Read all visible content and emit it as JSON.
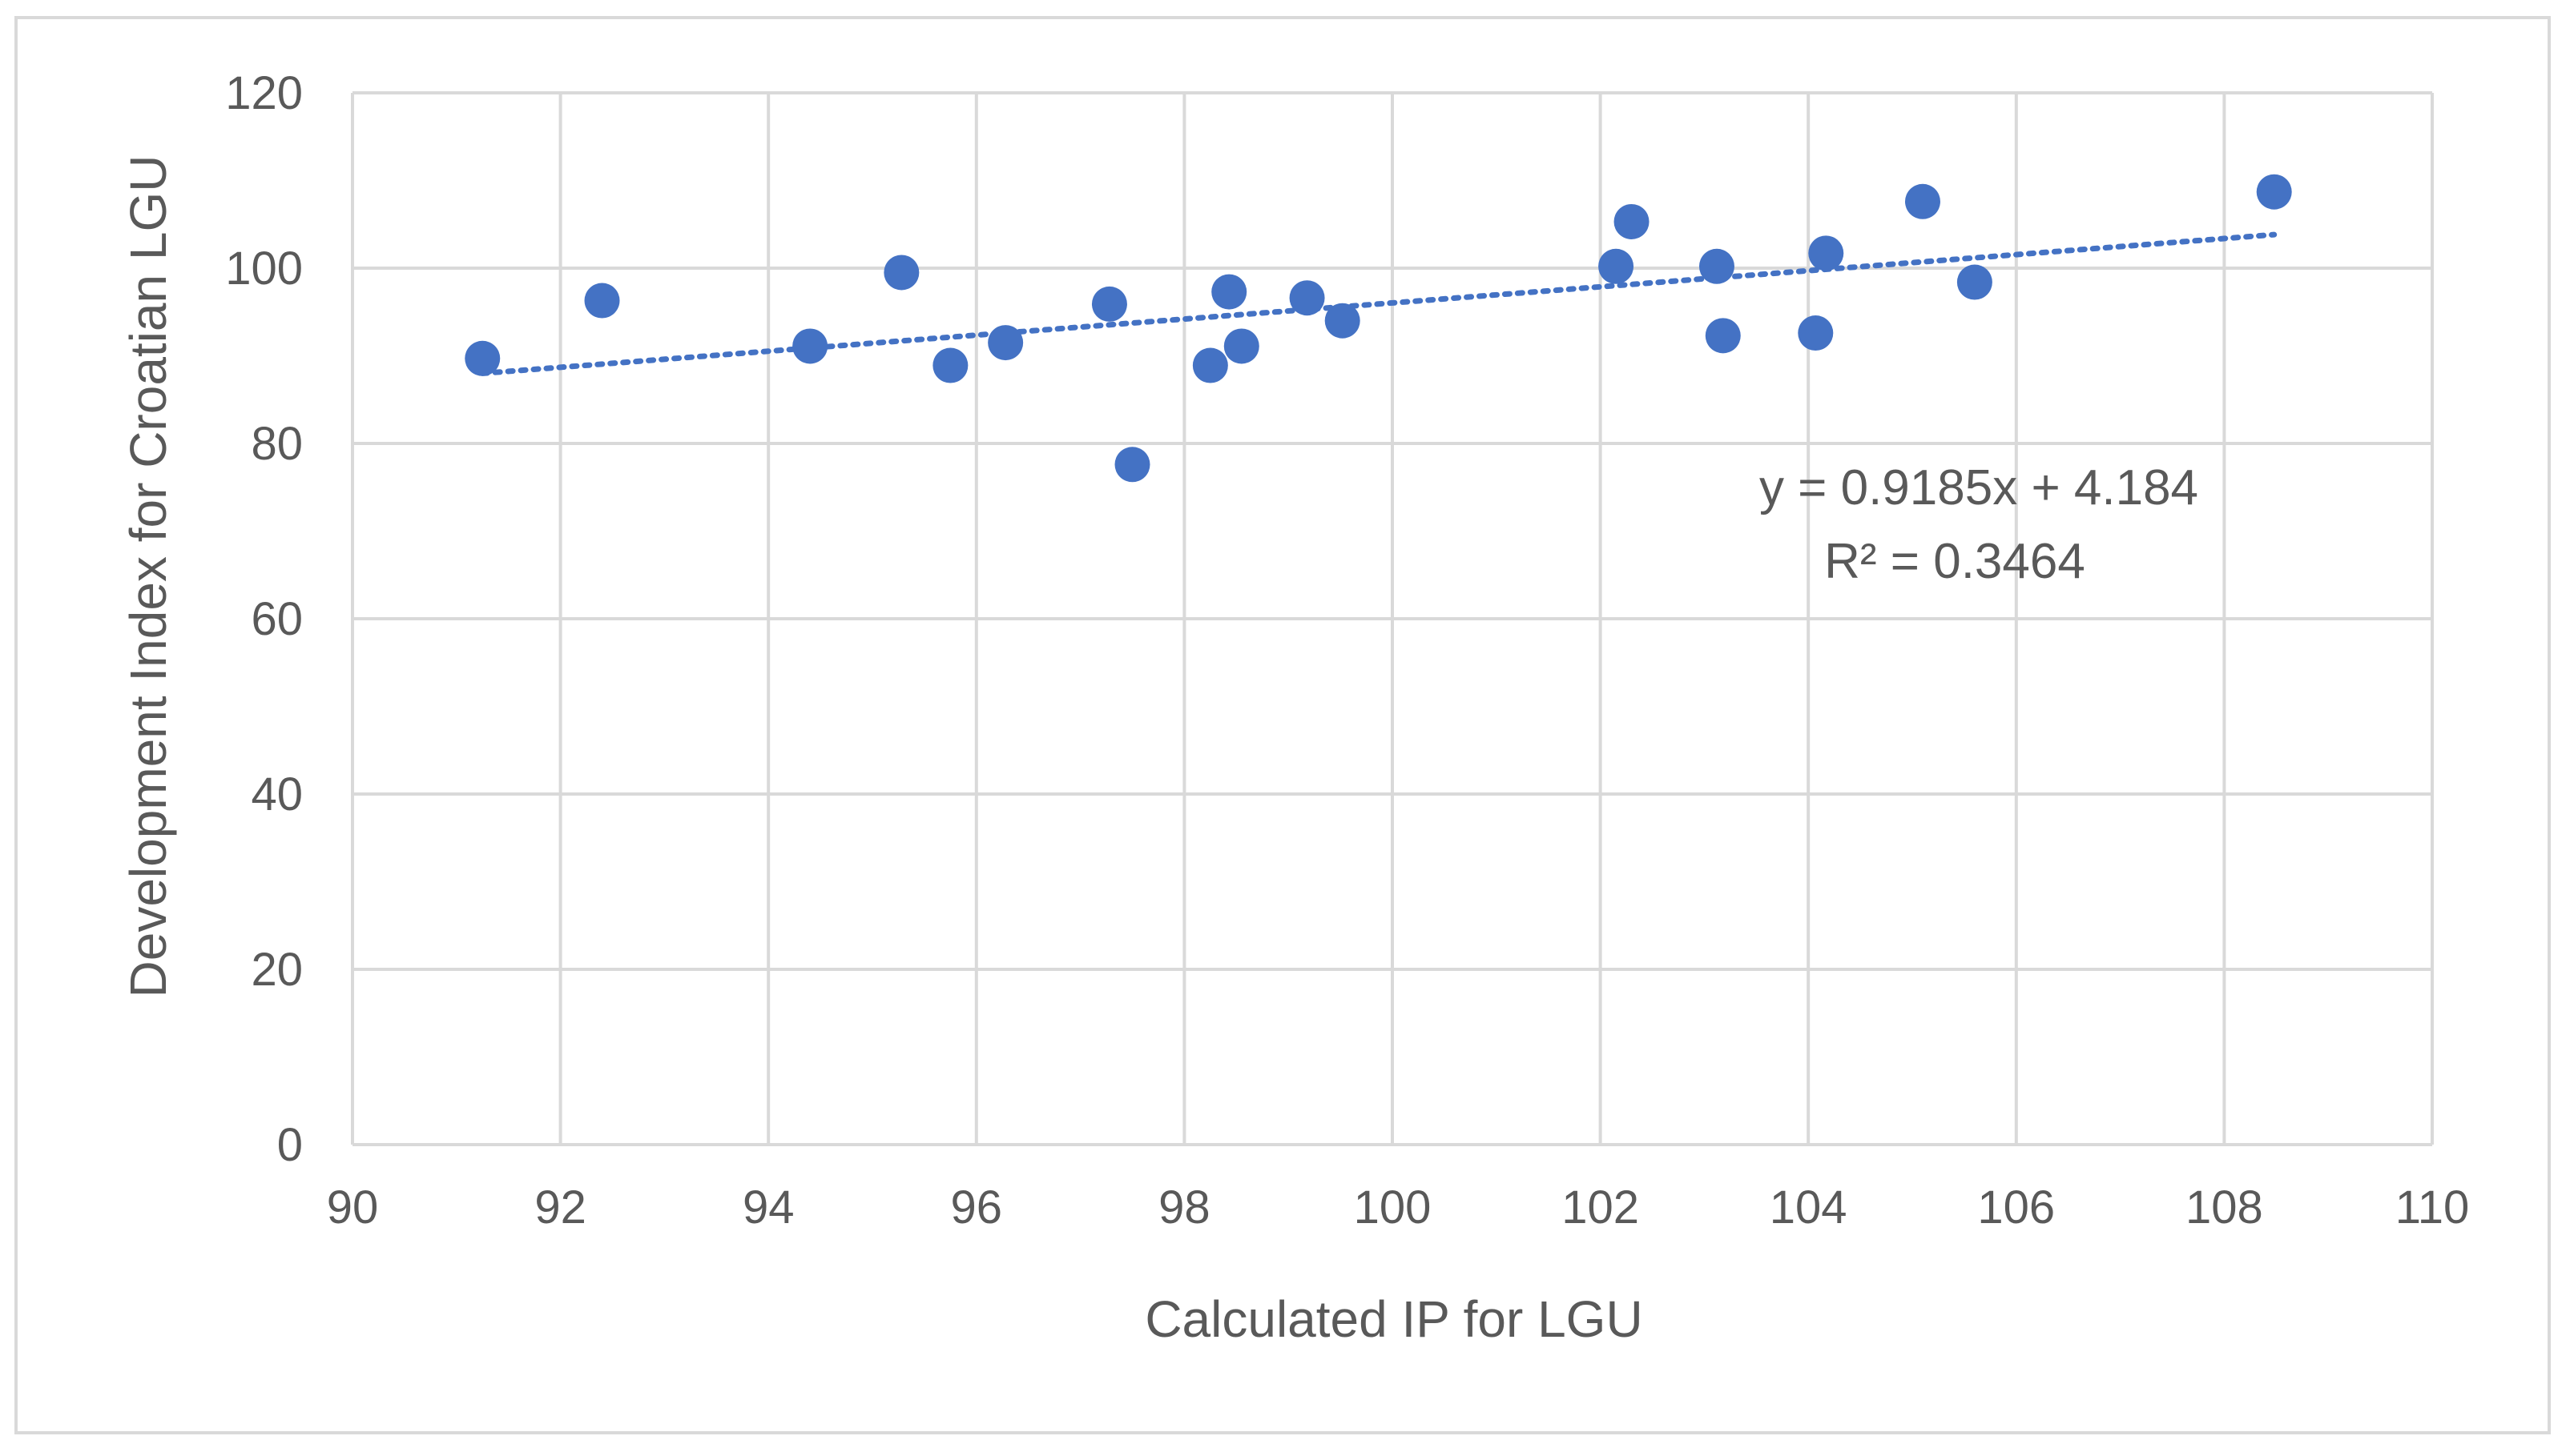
{
  "chart_data": {
    "type": "scatter",
    "title": "",
    "xlabel": "Calculated IP for LGU",
    "ylabel": "Development Index for Croatian LGU",
    "xlim": [
      90,
      110
    ],
    "ylim": [
      0,
      120
    ],
    "x_ticks": [
      90,
      92,
      94,
      96,
      98,
      100,
      102,
      104,
      106,
      108,
      110
    ],
    "y_ticks": [
      0,
      20,
      40,
      60,
      80,
      100,
      120
    ],
    "grid": true,
    "legend": "none",
    "marker_color": "#4472c4",
    "trendline_color": "#4472c4",
    "series": [
      {
        "name": "LGU",
        "points": [
          [
            91.25,
            89.7
          ],
          [
            92.4,
            96.3
          ],
          [
            94.4,
            91.1
          ],
          [
            95.28,
            99.5
          ],
          [
            95.75,
            88.9
          ],
          [
            96.28,
            91.5
          ],
          [
            97.28,
            95.9
          ],
          [
            97.5,
            77.6
          ],
          [
            98.25,
            88.9
          ],
          [
            98.43,
            97.3
          ],
          [
            98.55,
            91.1
          ],
          [
            99.18,
            96.6
          ],
          [
            99.52,
            94.0
          ],
          [
            102.15,
            100.2
          ],
          [
            102.3,
            105.3
          ],
          [
            103.12,
            100.2
          ],
          [
            103.18,
            92.3
          ],
          [
            104.07,
            92.6
          ],
          [
            104.17,
            101.7
          ],
          [
            105.1,
            107.6
          ],
          [
            105.6,
            98.4
          ],
          [
            108.48,
            108.7
          ]
        ]
      }
    ],
    "trendline": {
      "slope": 0.9185,
      "intercept": 4.184,
      "x_range": [
        91.25,
        108.48
      ],
      "equation_label": "y = 0.9185x + 4.184",
      "r2_label": "R² = 0.3464"
    }
  }
}
